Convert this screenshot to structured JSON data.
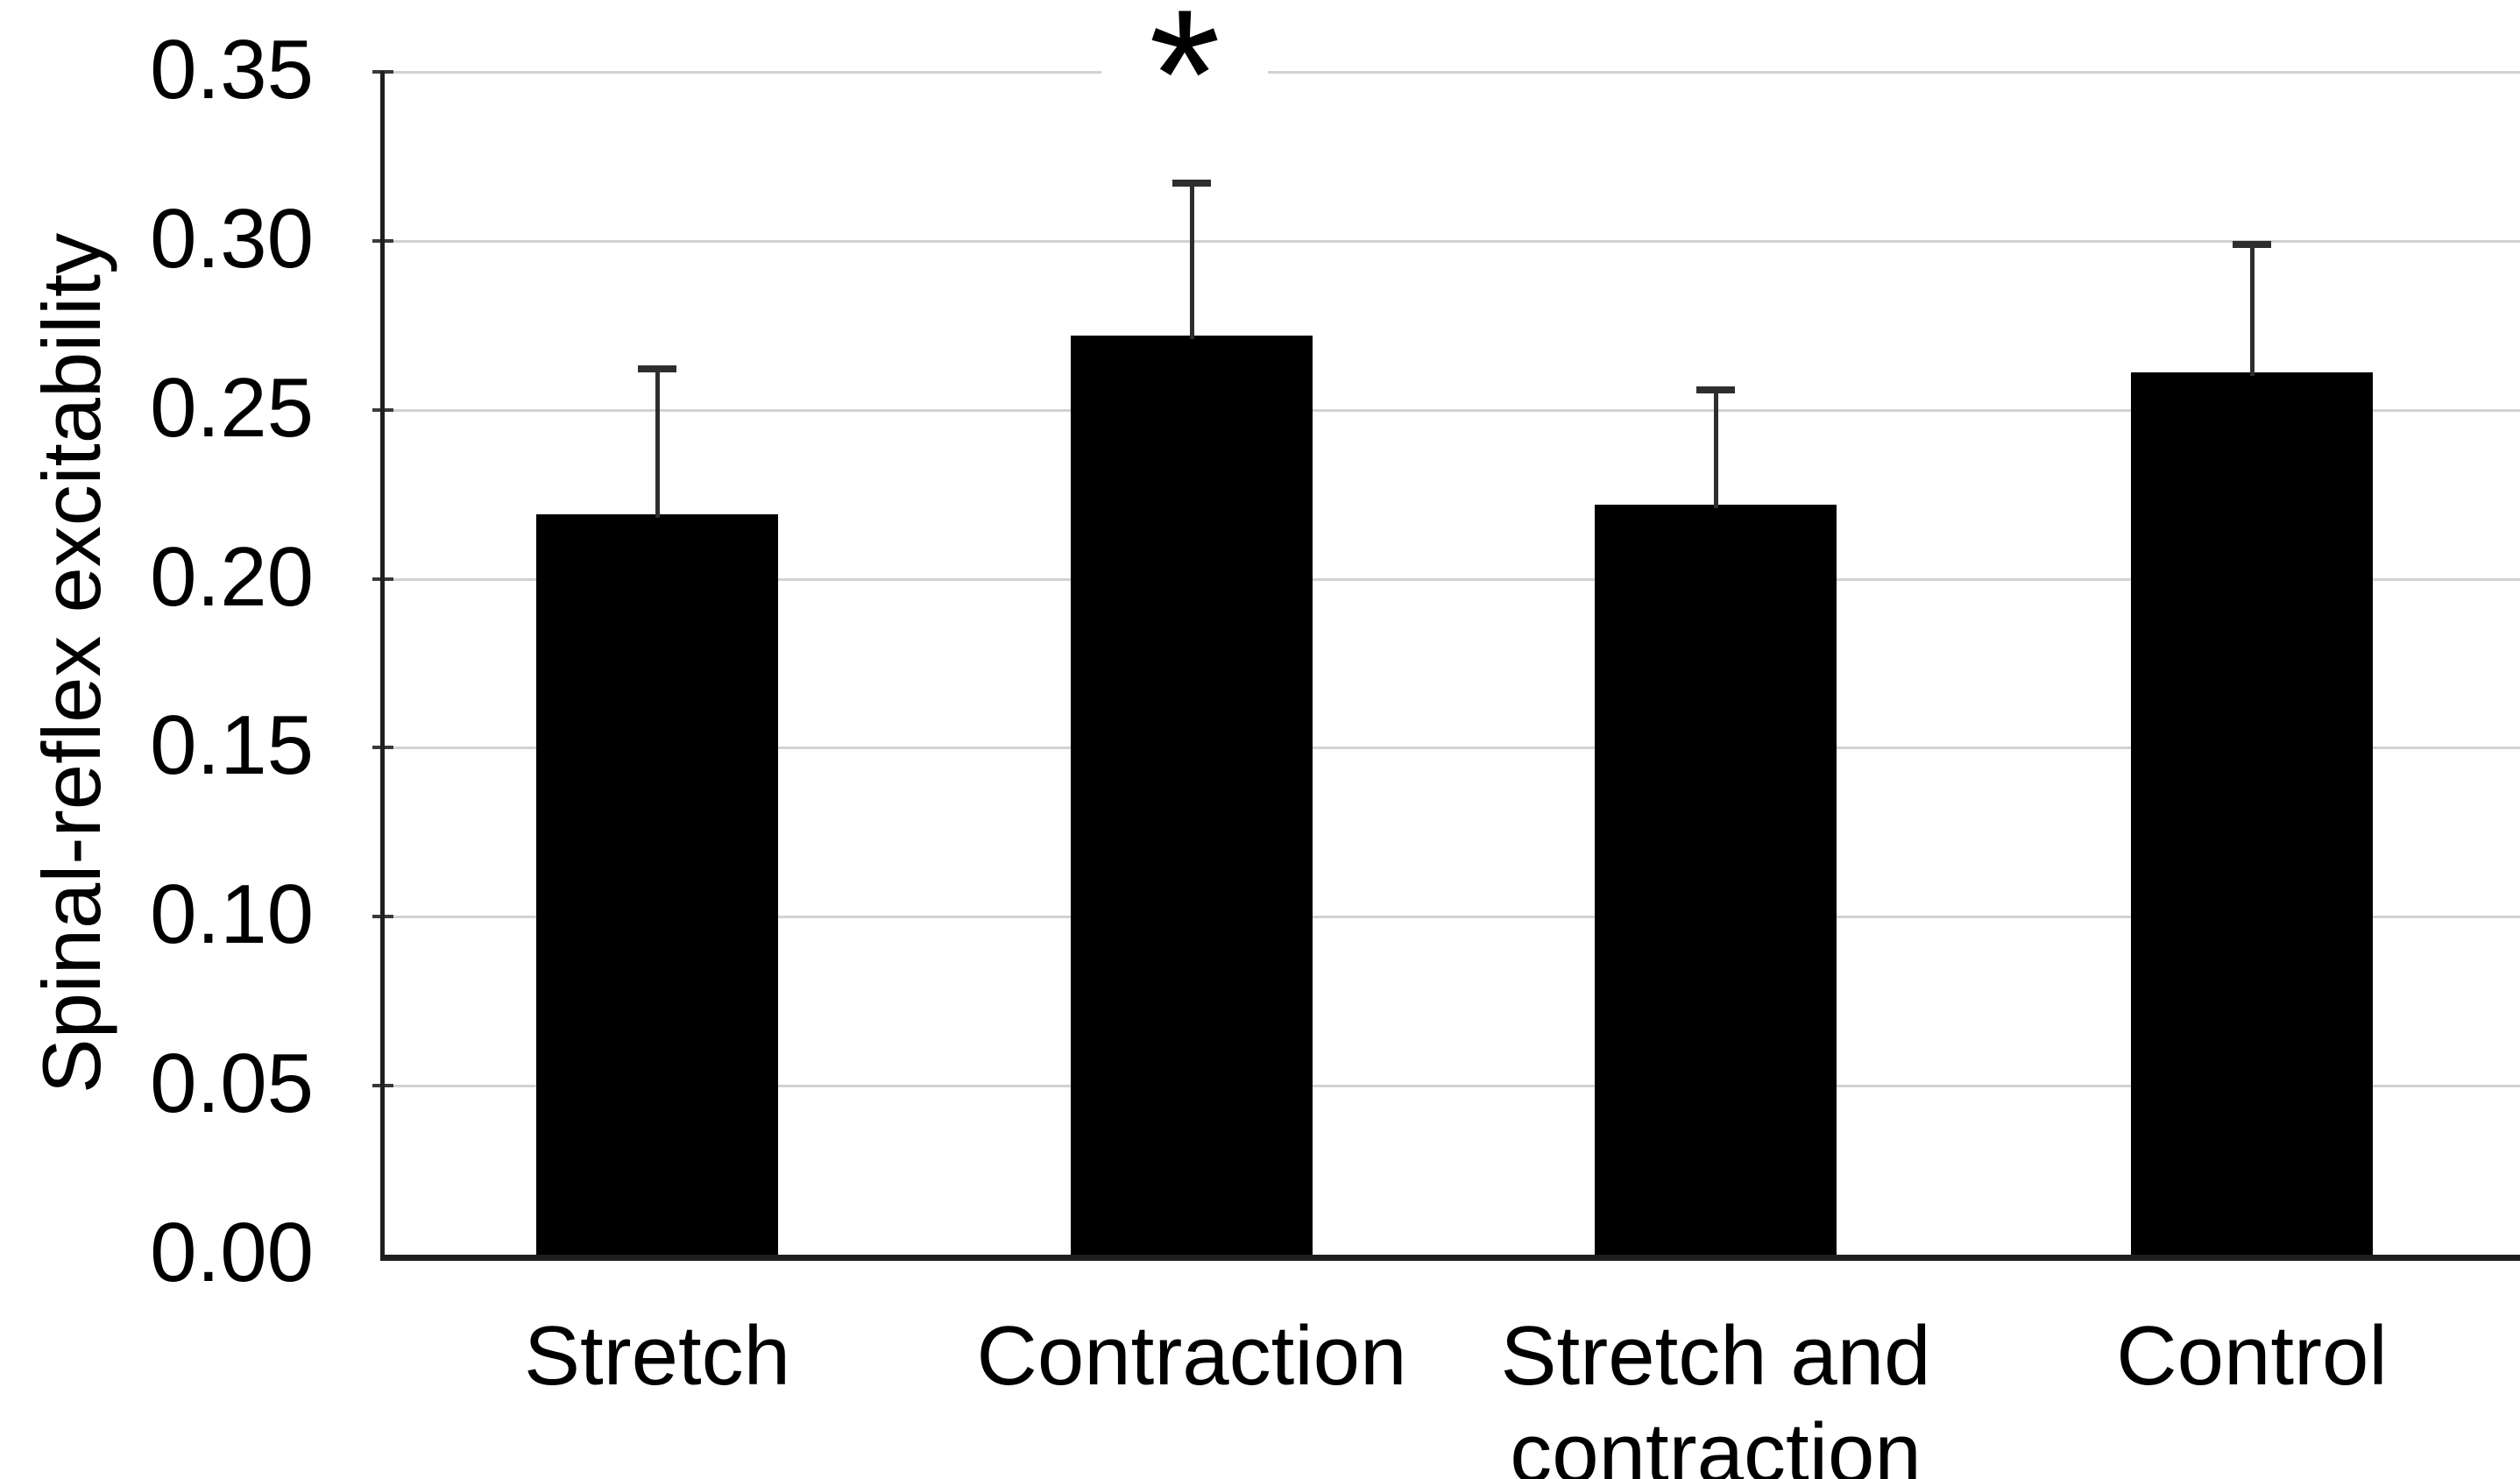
{
  "chart_data": {
    "type": "bar",
    "title": "",
    "xlabel": "",
    "ylabel": "Spinal-reflex excitability",
    "categories": [
      "Stretch",
      "Contraction",
      "Stretch and contraction",
      "Control"
    ],
    "series": [
      {
        "name": "Spinal-reflex excitability",
        "values": [
          0.219,
          0.272,
          0.222,
          0.261
        ],
        "error_upper": [
          0.043,
          0.045,
          0.034,
          0.038
        ]
      }
    ],
    "y_ticks": [
      "0.00",
      "0.05",
      "0.10",
      "0.15",
      "0.20",
      "0.25",
      "0.30",
      "0.35"
    ],
    "ylim": [
      0,
      0.35
    ],
    "grid": true,
    "legend": "none",
    "bar_color": "#000000",
    "gridline_color": "#d2d2d2",
    "axis_color": "#1f1f1f",
    "error_bar_color": "#2e2e2e",
    "significance": {
      "symbol": "*",
      "category": "Contraction",
      "category_index": 1
    }
  }
}
